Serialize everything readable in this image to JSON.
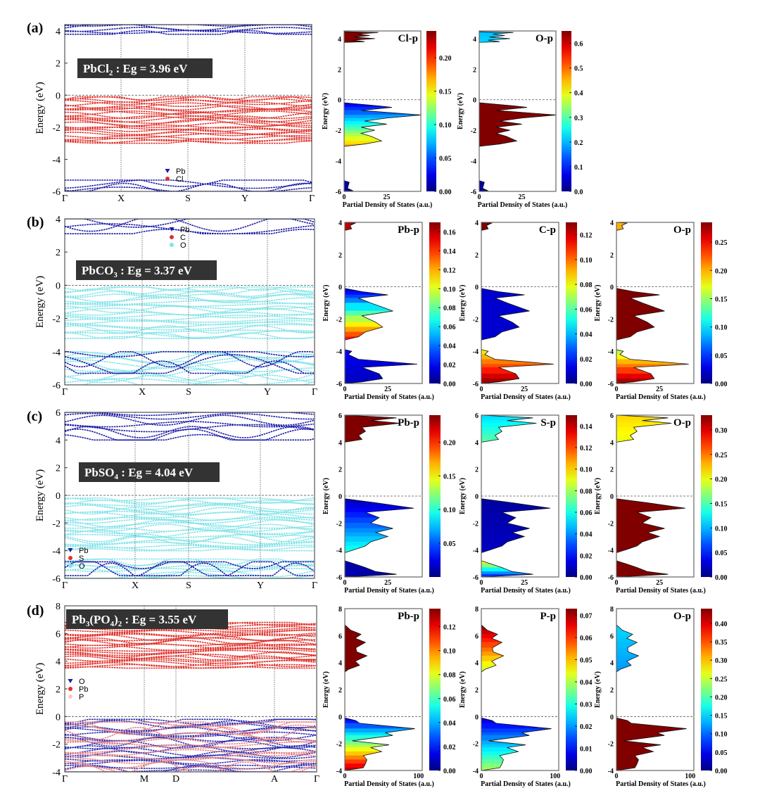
{
  "chart_data": [
    {
      "panel": "(a)",
      "type": "band-structure+pdos",
      "title_parts": [
        [
          "PbCl",
          false
        ],
        [
          "2",
          true
        ],
        [
          " : Eg = 3.96 eV",
          false
        ]
      ],
      "band_ylabel": "Energy (eV)",
      "ylim": [
        -6,
        4.4
      ],
      "yticks": [
        -6,
        -4,
        -2,
        0,
        2,
        4
      ],
      "kpath": [
        "Γ",
        "X",
        "S",
        "Y",
        "Γ"
      ],
      "legend": [
        {
          "label": "Pb",
          "color": "#1a1aa8",
          "marker": "triangle"
        },
        {
          "label": "Cl",
          "color": "#e0302a",
          "marker": "circle"
        }
      ],
      "bands": [
        {
          "emin": -3.0,
          "emax": -0.1,
          "n": 26,
          "color": "#e0302a"
        },
        {
          "emin": 3.8,
          "emax": 4.4,
          "n": 5,
          "color": "#1a1aa8"
        },
        {
          "emin": -6.0,
          "emax": -5.3,
          "n": 4,
          "color": "#1a1aa8"
        }
      ],
      "dos_xlim": [
        0,
        45
      ],
      "dos_xticks": [
        0,
        25
      ],
      "dos_ylim": [
        -6,
        4.5
      ],
      "dos_yticks": [
        -6,
        -4,
        -2,
        0,
        2,
        4
      ],
      "dos_xlabel": "Partial Density of States (a.u.)",
      "dos_ylabel": "Energy (eV)",
      "dos_shape": [
        [
          [
            4.45,
            0
          ],
          [
            4.4,
            20
          ],
          [
            4.3,
            8
          ],
          [
            4.2,
            15
          ],
          [
            4.1,
            6
          ],
          [
            4.0,
            18
          ],
          [
            3.9,
            5
          ],
          [
            3.8,
            12
          ],
          [
            3.75,
            0
          ]
        ],
        [
          [
            -0.2,
            0
          ],
          [
            -0.4,
            20
          ],
          [
            -0.5,
            28
          ],
          [
            -0.7,
            10
          ],
          [
            -1.0,
            45
          ],
          [
            -1.2,
            25
          ],
          [
            -1.4,
            12
          ],
          [
            -1.6,
            25
          ],
          [
            -1.8,
            10
          ],
          [
            -2.0,
            18
          ],
          [
            -2.2,
            10
          ],
          [
            -2.4,
            16
          ],
          [
            -2.7,
            22
          ],
          [
            -2.9,
            12
          ],
          [
            -3.05,
            0
          ]
        ],
        [
          [
            -5.3,
            0
          ],
          [
            -5.4,
            3
          ],
          [
            -5.8,
            2
          ],
          [
            -5.95,
            5
          ],
          [
            -6,
            0
          ]
        ]
      ],
      "dos": [
        {
          "label": "Cl-p",
          "cmax": 0.24,
          "cticks": [
            0.0,
            0.05,
            0.1,
            0.15,
            0.2
          ],
          "cdigits": 2,
          "weights": [
            [
              0.24,
              0.24
            ],
            [
              0.02,
              0.17
            ],
            [
              0.01,
              0.01
            ]
          ]
        },
        {
          "label": "O-p",
          "cmax": 0.65,
          "cticks": [
            0.0,
            0.1,
            0.2,
            0.3,
            0.4,
            0.5,
            0.6
          ],
          "cdigits": 1,
          "weights": [
            [
              0.2,
              0.22
            ],
            [
              0.65,
              0.65
            ],
            [
              0.02,
              0.02
            ]
          ]
        }
      ]
    },
    {
      "panel": "(b)",
      "type": "band-structure+pdos",
      "title_parts": [
        [
          "PbCO",
          false
        ],
        [
          "3",
          true
        ],
        [
          " : Eg = 3.37 eV",
          false
        ]
      ],
      "band_ylabel": "Energy (eV)",
      "ylim": [
        -6,
        4
      ],
      "yticks": [
        -6,
        -4,
        -2,
        0,
        2,
        4
      ],
      "kpath": [
        "Γ",
        "X",
        "S",
        "Y",
        "Γ"
      ],
      "legend": [
        {
          "label": "Pb",
          "color": "#1a1aa8",
          "marker": "triangle"
        },
        {
          "label": "C",
          "color": "#e0302a",
          "marker": "circle"
        },
        {
          "label": "O",
          "color": "#7fe3e8",
          "marker": "circle"
        }
      ],
      "bands": [
        {
          "emin": -3.2,
          "emax": -0.1,
          "n": 24,
          "color": "#7fe3e8"
        },
        {
          "emin": -6.0,
          "emax": -4.0,
          "n": 12,
          "color": "#7fe3e8"
        },
        {
          "emin": -5.3,
          "emax": -4.0,
          "n": 4,
          "color": "#1a1aa8"
        },
        {
          "emin": 3.1,
          "emax": 4.0,
          "n": 4,
          "color": "#1a1aa8"
        }
      ],
      "dos_xlim": [
        0,
        45
      ],
      "dos_xticks": [
        0,
        25
      ],
      "dos_ylim": [
        -6,
        4
      ],
      "dos_yticks": [
        -6,
        -4,
        -2,
        0,
        2,
        4
      ],
      "dos_xlabel": "Partial Density of States (a.u.)",
      "dos_ylabel": "Energy (eV)",
      "dos_shape": [
        [
          [
            4,
            0
          ],
          [
            3.95,
            6
          ],
          [
            3.8,
            3
          ],
          [
            3.6,
            4
          ],
          [
            3.5,
            0
          ]
        ],
        [
          [
            -0.1,
            0
          ],
          [
            -0.3,
            10
          ],
          [
            -0.5,
            25
          ],
          [
            -0.7,
            8
          ],
          [
            -1.0,
            15
          ],
          [
            -1.5,
            28
          ],
          [
            -1.8,
            10
          ],
          [
            -2.2,
            18
          ],
          [
            -2.5,
            22
          ],
          [
            -2.8,
            12
          ],
          [
            -3.1,
            8
          ],
          [
            -3.3,
            0
          ]
        ],
        [
          [
            -3.9,
            0
          ],
          [
            -4.0,
            4
          ],
          [
            -4.2,
            2
          ],
          [
            -4.5,
            8
          ],
          [
            -4.8,
            42
          ],
          [
            -5.0,
            10
          ],
          [
            -5.4,
            20
          ],
          [
            -5.7,
            22
          ],
          [
            -5.9,
            10
          ],
          [
            -6,
            0
          ]
        ]
      ],
      "dos": [
        {
          "label": "Pb-p",
          "cmax": 0.17,
          "cticks": [
            0.0,
            0.02,
            0.04,
            0.06,
            0.08,
            0.1,
            0.12,
            0.14,
            0.16
          ],
          "cdigits": 2,
          "weights": [
            [
              0.16,
              0.16
            ],
            [
              0.01,
              0.15
            ],
            [
              0.02,
              0.01
            ]
          ]
        },
        {
          "label": "C-p",
          "cmax": 0.13,
          "cticks": [
            0.0,
            0.02,
            0.04,
            0.06,
            0.08,
            0.1,
            0.12
          ],
          "cdigits": 2,
          "weights": [
            [
              0.13,
              0.13
            ],
            [
              0.01,
              0.01
            ],
            [
              0.08,
              0.13
            ]
          ]
        },
        {
          "label": "O-p",
          "cmax": 0.285,
          "cticks": [
            0.0,
            0.05,
            0.1,
            0.15,
            0.2,
            0.25
          ],
          "cdigits": 2,
          "weights": [
            [
              0.2,
              0.2
            ],
            [
              0.285,
              0.285
            ],
            [
              0.15,
              0.285
            ]
          ]
        }
      ]
    },
    {
      "panel": "(c)",
      "type": "band-structure+pdos",
      "title_parts": [
        [
          "PbSO",
          false
        ],
        [
          "4",
          true
        ],
        [
          " : Eg = 4.04 eV",
          false
        ]
      ],
      "band_ylabel": "Energy (eV)",
      "ylim": [
        -6,
        6
      ],
      "yticks": [
        -6,
        -4,
        -2,
        0,
        2,
        4,
        6
      ],
      "kpath": [
        "Γ",
        "X",
        "S",
        "Y",
        "Γ"
      ],
      "legend": [
        {
          "label": "Pb",
          "color": "#1a1aa8",
          "marker": "triangle"
        },
        {
          "label": "S",
          "color": "#e0302a",
          "marker": "circle"
        },
        {
          "label": "O",
          "color": "#7fe3e8",
          "marker": "circle"
        }
      ],
      "bands": [
        {
          "emin": -4.0,
          "emax": -0.2,
          "n": 26,
          "color": "#7fe3e8"
        },
        {
          "emin": -6.0,
          "emax": -4.6,
          "n": 8,
          "color": "#7fe3e8"
        },
        {
          "emin": -5.8,
          "emax": -4.8,
          "n": 3,
          "color": "#1a1aa8"
        },
        {
          "emin": 4.0,
          "emax": 6.0,
          "n": 8,
          "color": "#1a1aa8"
        }
      ],
      "dos_xlim": [
        0,
        45
      ],
      "dos_xticks": [
        0,
        25
      ],
      "dos_ylim": [
        -6,
        6
      ],
      "dos_yticks": [
        -6,
        -4,
        -2,
        0,
        2,
        4,
        6
      ],
      "dos_xlabel": "Partial Density of States (a.u.)",
      "dos_ylabel": "Energy (eV)",
      "dos_shape": [
        [
          [
            6,
            0
          ],
          [
            5.8,
            30
          ],
          [
            5.6,
            15
          ],
          [
            5.4,
            32
          ],
          [
            5.1,
            10
          ],
          [
            4.8,
            12
          ],
          [
            4.5,
            8
          ],
          [
            4.2,
            10
          ],
          [
            4.0,
            0
          ]
        ],
        [
          [
            -0.2,
            0
          ],
          [
            -0.5,
            18
          ],
          [
            -0.9,
            40
          ],
          [
            -1.2,
            12
          ],
          [
            -1.6,
            20
          ],
          [
            -2,
            15
          ],
          [
            -2.4,
            28
          ],
          [
            -2.7,
            18
          ],
          [
            -3.0,
            25
          ],
          [
            -3.4,
            15
          ],
          [
            -3.7,
            12
          ],
          [
            -4.0,
            5
          ],
          [
            -4.2,
            0
          ]
        ],
        [
          [
            -4.8,
            0
          ],
          [
            -5.0,
            5
          ],
          [
            -5.3,
            12
          ],
          [
            -5.6,
            18
          ],
          [
            -5.8,
            30
          ],
          [
            -6,
            0
          ]
        ]
      ],
      "dos": [
        {
          "label": "Pb-p",
          "cmax": 0.24,
          "cticks": [
            0.05,
            0.1,
            0.15,
            0.2
          ],
          "cdigits": 2,
          "weights": [
            [
              0.24,
              0.24
            ],
            [
              0.01,
              0.1
            ],
            [
              0.01,
              0.01
            ]
          ]
        },
        {
          "label": "S-p",
          "cmax": 0.15,
          "cticks": [
            0.0,
            0.02,
            0.04,
            0.06,
            0.08,
            0.1,
            0.12,
            0.14
          ],
          "cdigits": 2,
          "weights": [
            [
              0.05,
              0.07
            ],
            [
              0.005,
              0.01
            ],
            [
              0.1,
              0.02
            ]
          ]
        },
        {
          "label": "O-p",
          "cmax": 0.33,
          "cticks": [
            0.0,
            0.05,
            0.1,
            0.15,
            0.2,
            0.25,
            0.3
          ],
          "cdigits": 2,
          "weights": [
            [
              0.22,
              0.2
            ],
            [
              0.33,
              0.33
            ],
            [
              0.33,
              0.33
            ]
          ]
        }
      ]
    },
    {
      "panel": "(d)",
      "type": "band-structure+pdos",
      "title_parts": [
        [
          "Pb",
          false
        ],
        [
          "3",
          true
        ],
        [
          "(PO",
          false
        ],
        [
          "4",
          true
        ],
        [
          ")",
          false
        ],
        [
          "2",
          true
        ],
        [
          " : Eg = 3.55 eV",
          false
        ]
      ],
      "band_ylabel": "Energy (eV)",
      "ylim": [
        -4,
        8
      ],
      "yticks": [
        -4,
        -2,
        0,
        2,
        4,
        6,
        8
      ],
      "kpath": [
        "Γ",
        "M",
        "D",
        "A",
        "Γ"
      ],
      "legend": [
        {
          "label": "O",
          "color": "#1a1aa8",
          "marker": "triangle"
        },
        {
          "label": "Pb",
          "color": "#e0302a",
          "marker": "circle"
        },
        {
          "label": "P",
          "color": "#f3c9c9",
          "marker": "circle"
        }
      ],
      "bands": [
        {
          "emin": 3.5,
          "emax": 6.8,
          "n": 28,
          "color": "#e0302a"
        },
        {
          "emin": -4.0,
          "emax": -0.2,
          "n": 22,
          "color": "#2a2ab0"
        },
        {
          "emin": -4.0,
          "emax": -0.4,
          "n": 14,
          "color": "#e88080"
        }
      ],
      "dos_xlim": [
        0,
        105
      ],
      "dos_xticks": [
        0,
        100
      ],
      "dos_ylim": [
        -4,
        8
      ],
      "dos_yticks": [
        -4,
        -2,
        0,
        2,
        4,
        6,
        8
      ],
      "dos_xlabel": "Partial Density of States (a.u.)",
      "dos_ylabel": "Energy (eV)",
      "dos_shape": [
        [
          [
            6.8,
            0
          ],
          [
            6.4,
            8
          ],
          [
            6.1,
            22
          ],
          [
            5.8,
            14
          ],
          [
            5.5,
            28
          ],
          [
            5.1,
            15
          ],
          [
            4.8,
            16
          ],
          [
            4.5,
            30
          ],
          [
            4.1,
            14
          ],
          [
            3.8,
            20
          ],
          [
            3.5,
            5
          ],
          [
            3.3,
            0
          ]
        ],
        [
          [
            -0.1,
            0
          ],
          [
            -0.3,
            15
          ],
          [
            -0.5,
            20
          ],
          [
            -0.9,
            95
          ],
          [
            -1.2,
            55
          ],
          [
            -1.4,
            65
          ],
          [
            -1.8,
            10
          ],
          [
            -2.1,
            60
          ],
          [
            -2.3,
            35
          ],
          [
            -2.6,
            50
          ],
          [
            -2.9,
            25
          ],
          [
            -3.2,
            30
          ],
          [
            -3.5,
            28
          ],
          [
            -3.8,
            25
          ],
          [
            -4,
            0
          ]
        ]
      ],
      "dos": [
        {
          "label": "Pb-p",
          "cmax": 0.135,
          "cticks": [
            0.0,
            0.02,
            0.04,
            0.06,
            0.08,
            0.1,
            0.12
          ],
          "cdigits": 2,
          "weights": [
            [
              0.135,
              0.135
            ],
            [
              0.01,
              0.13
            ]
          ]
        },
        {
          "label": "P-p",
          "cmax": 0.073,
          "cticks": [
            0.0,
            0.01,
            0.02,
            0.03,
            0.04,
            0.05,
            0.06,
            0.07
          ],
          "cdigits": 2,
          "weights": [
            [
              0.073,
              0.04
            ],
            [
              0.005,
              0.04
            ]
          ]
        },
        {
          "label": "O-p",
          "cmax": 0.44,
          "cticks": [
            0.0,
            0.05,
            0.1,
            0.15,
            0.2,
            0.25,
            0.3,
            0.35,
            0.4
          ],
          "cdigits": 2,
          "weights": [
            [
              0.15,
              0.12
            ],
            [
              0.44,
              0.44
            ]
          ]
        }
      ]
    }
  ]
}
